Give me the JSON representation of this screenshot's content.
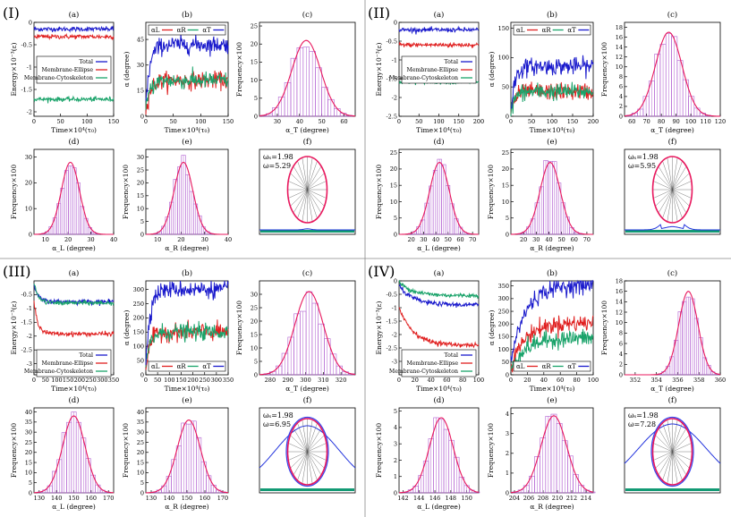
{
  "figure": {
    "groups": [
      {
        "label": "(I)",
        "energy_xmax": "150",
        "omega_s": "ωₛ=1.98",
        "omega": "ω=5.29"
      },
      {
        "label": "(II)",
        "energy_xmax": "200",
        "omega_s": "ωₛ=1.98",
        "omega": "ω=5.95"
      },
      {
        "label": "(III)",
        "energy_xmax": "350",
        "omega_s": "ωₛ=1.98",
        "omega": "ω=6.95"
      },
      {
        "label": "(IV)",
        "energy_xmax": "100",
        "omega_s": "ωₛ=1.98",
        "omega": "ω=7.28"
      }
    ],
    "panel_letters": [
      "(a)",
      "(b)",
      "(c)",
      "(d)",
      "(e)",
      "(f)"
    ],
    "energy_ylabel": "Energy×10⁻³(ε)",
    "time_xlabel": "Time×10⁴(τ₀)",
    "alpha_ylabel": "α (degree)",
    "freq_ylabel": "Frequency×100",
    "alphaT_xlabel": "α_T (degree)",
    "alphaL_xlabel": "α_L (degree)",
    "alphaR_xlabel": "α_R (degree)",
    "energy_legend": [
      "Total",
      "Membrane-Ellipse",
      "Membrane-Cytoskeleton"
    ],
    "alpha_legend": [
      "αL",
      "αR",
      "αT"
    ]
  },
  "colors": {
    "total": "#1a1acc",
    "membrane_ellipse": "#e02020",
    "membrane_cytoskeleton": "#1aa36a",
    "hist_bar": "#b15ed0",
    "gauss": "#e8175d",
    "ellipse": "#e8175d",
    "ellipse_inner": "#3344ee",
    "membrane": "#2233dd",
    "substrate": "#129a74"
  },
  "chart_data": [
    {
      "group": "I",
      "panel": "a",
      "type": "line",
      "xlim": [
        0,
        150
      ],
      "ylim": [
        -2.1,
        0
      ],
      "xticks": [
        0,
        50,
        100,
        150
      ],
      "yticks": [
        -2,
        -1.5,
        -1,
        -0.5,
        0
      ],
      "series": [
        {
          "name": "Total",
          "mean": -0.15
        },
        {
          "name": "Membrane-Ellipse",
          "mean": -0.32
        },
        {
          "name": "Membrane-Cytoskeleton",
          "mean": -1.72
        }
      ]
    },
    {
      "group": "I",
      "panel": "b",
      "type": "line",
      "xlim": [
        0,
        150
      ],
      "ylim": [
        0,
        55
      ],
      "xticks": [
        0,
        50,
        100,
        150
      ],
      "yticks": [
        0,
        15,
        30,
        45
      ],
      "series": [
        {
          "name": "αL",
          "mean": 21
        },
        {
          "name": "αR",
          "mean": 21
        },
        {
          "name": "αT",
          "mean": 42
        }
      ]
    },
    {
      "group": "I",
      "panel": "c",
      "type": "bar",
      "mean": 43,
      "sd": 6.5,
      "peak": 21,
      "xlim": [
        22,
        65
      ],
      "ylim": [
        0,
        26
      ],
      "xticks": [
        30,
        40,
        50,
        60
      ],
      "yticks": [
        0,
        5,
        10,
        15,
        20,
        25
      ]
    },
    {
      "group": "I",
      "panel": "d",
      "type": "bar",
      "mean": 21,
      "sd": 4,
      "peak": 28,
      "xlim": [
        5,
        40
      ],
      "ylim": [
        0,
        33
      ],
      "xticks": [
        10,
        20,
        30,
        40
      ],
      "yticks": [
        0,
        10,
        20,
        30
      ]
    },
    {
      "group": "I",
      "panel": "e",
      "type": "bar",
      "mean": 21,
      "sd": 4,
      "peak": 28,
      "xlim": [
        5,
        40
      ],
      "ylim": [
        0,
        33
      ],
      "xticks": [
        10,
        20,
        30,
        40
      ],
      "yticks": [
        0,
        5,
        10,
        15,
        20,
        25,
        30
      ]
    },
    {
      "group": "II",
      "panel": "a",
      "type": "line",
      "xlim": [
        0,
        200
      ],
      "ylim": [
        -2.5,
        0
      ],
      "xticks": [
        0,
        50,
        100,
        150,
        200
      ],
      "yticks": [
        -2.5,
        -2,
        -1.5,
        -1,
        -0.5,
        0
      ],
      "series": [
        {
          "name": "Total",
          "mean": -0.2
        },
        {
          "name": "Membrane-Ellipse",
          "mean": -0.6
        },
        {
          "name": "Membrane-Cytoskeleton",
          "mean": -1.58
        }
      ]
    },
    {
      "group": "II",
      "panel": "b",
      "type": "line",
      "xlim": [
        0,
        200
      ],
      "ylim": [
        0,
        160
      ],
      "xticks": [
        0,
        50,
        100,
        150,
        200
      ],
      "yticks": [
        0,
        50,
        100,
        150
      ],
      "series": [
        {
          "name": "αL",
          "mean": 42
        },
        {
          "name": "αR",
          "mean": 42
        },
        {
          "name": "αT",
          "mean": 85
        }
      ]
    },
    {
      "group": "II",
      "panel": "c",
      "type": "bar",
      "mean": 85,
      "sd": 9,
      "peak": 17,
      "xlim": [
        55,
        120
      ],
      "ylim": [
        0,
        19
      ],
      "xticks": [
        60,
        70,
        80,
        90,
        100,
        110,
        120
      ],
      "yticks": [
        0,
        2,
        4,
        6,
        8,
        10,
        12,
        14,
        16,
        18
      ]
    },
    {
      "group": "II",
      "panel": "d",
      "type": "bar",
      "mean": 43,
      "sd": 8,
      "peak": 22,
      "xlim": [
        10,
        75
      ],
      "ylim": [
        0,
        26
      ],
      "xticks": [
        20,
        30,
        40,
        50,
        60,
        70
      ],
      "yticks": [
        0,
        5,
        10,
        15,
        20,
        25
      ]
    },
    {
      "group": "II",
      "panel": "e",
      "type": "bar",
      "mean": 41,
      "sd": 8,
      "peak": 22,
      "xlim": [
        10,
        75
      ],
      "ylim": [
        0,
        26
      ],
      "xticks": [
        20,
        30,
        40,
        50,
        60,
        70
      ],
      "yticks": [
        0,
        5,
        10,
        15,
        20,
        25
      ]
    },
    {
      "group": "III",
      "panel": "a",
      "type": "line",
      "xlim": [
        0,
        350
      ],
      "ylim": [
        -3.4,
        0
      ],
      "xticks": [
        0,
        50,
        100,
        150,
        200,
        250,
        300,
        350
      ],
      "yticks": [
        -3,
        -2.5,
        -2,
        -1.5,
        -1,
        -0.5
      ],
      "series": [
        {
          "name": "Total",
          "mean": -0.75
        },
        {
          "name": "Membrane-Ellipse",
          "mean": -1.92
        },
        {
          "name": "Membrane-Cytoskeleton",
          "mean": -0.8
        }
      ]
    },
    {
      "group": "III",
      "panel": "b",
      "type": "line",
      "xlim": [
        0,
        350
      ],
      "ylim": [
        0,
        330
      ],
      "xticks": [
        0,
        50,
        100,
        150,
        200,
        250,
        300,
        350
      ],
      "yticks": [
        0,
        50,
        100,
        150,
        200,
        250,
        300
      ],
      "series": [
        {
          "name": "αL",
          "mean": 150
        },
        {
          "name": "αR",
          "mean": 150
        },
        {
          "name": "αT",
          "mean": 300
        }
      ]
    },
    {
      "group": "III",
      "panel": "c",
      "type": "bar",
      "mean": 302,
      "sd": 8,
      "peak": 31,
      "xlim": [
        274,
        328
      ],
      "ylim": [
        0,
        35
      ],
      "xticks": [
        280,
        290,
        300,
        310,
        320
      ],
      "yticks": [
        0,
        5,
        10,
        15,
        20,
        25,
        30
      ]
    },
    {
      "group": "III",
      "panel": "d",
      "type": "bar",
      "mean": 150,
      "sd": 6.5,
      "peak": 38,
      "xlim": [
        127,
        173
      ],
      "ylim": [
        0,
        42
      ],
      "xticks": [
        130,
        140,
        150,
        160,
        170
      ],
      "yticks": [
        0,
        5,
        10,
        15,
        20,
        25,
        30,
        35,
        40
      ]
    },
    {
      "group": "III",
      "panel": "e",
      "type": "bar",
      "mean": 151,
      "sd": 6.5,
      "peak": 36,
      "xlim": [
        127,
        173
      ],
      "ylim": [
        0,
        42
      ],
      "xticks": [
        130,
        140,
        150,
        160,
        170
      ],
      "yticks": [
        0,
        5,
        10,
        15,
        20,
        25,
        30,
        35,
        40
      ]
    },
    {
      "group": "IV",
      "panel": "a",
      "type": "line",
      "xlim": [
        0,
        100
      ],
      "ylim": [
        -3.5,
        0
      ],
      "xticks": [
        0,
        20,
        40,
        60,
        80,
        100
      ],
      "yticks": [
        -3,
        -2.5,
        -2,
        -1.5,
        -1,
        -0.5,
        0
      ],
      "series": [
        {
          "name": "Total",
          "mean": -0.9
        },
        {
          "name": "Membrane-Ellipse",
          "mean": -2.4
        },
        {
          "name": "Membrane-Cytoskeleton",
          "mean": -0.55
        }
      ]
    },
    {
      "group": "IV",
      "panel": "b",
      "type": "line",
      "xlim": [
        0,
        100
      ],
      "ylim": [
        0,
        370
      ],
      "xticks": [
        0,
        20,
        40,
        60,
        80,
        100
      ],
      "yticks": [
        0,
        50,
        100,
        150,
        200,
        250,
        300,
        350
      ],
      "series": [
        {
          "name": "αL",
          "mean": 205
        },
        {
          "name": "αR",
          "mean": 145
        },
        {
          "name": "αT",
          "mean": 355
        }
      ]
    },
    {
      "group": "IV",
      "panel": "c",
      "type": "bar",
      "mean": 357,
      "sd": 0.9,
      "peak": 16,
      "xlim": [
        351,
        360
      ],
      "ylim": [
        0,
        18
      ],
      "xticks": [
        352,
        354,
        356,
        358,
        360
      ],
      "yticks": [
        0,
        2,
        4,
        6,
        8,
        10,
        12,
        14,
        16,
        18
      ]
    },
    {
      "group": "IV",
      "panel": "d",
      "type": "bar",
      "mean": 146.8,
      "sd": 1.5,
      "peak": 4.6,
      "xlim": [
        141.5,
        151.5
      ],
      "ylim": [
        0,
        5.2
      ],
      "xticks": [
        142,
        144,
        146,
        148,
        150
      ],
      "yticks": [
        0,
        1,
        2,
        3,
        4,
        5
      ]
    },
    {
      "group": "IV",
      "panel": "e",
      "type": "bar",
      "mean": 209.5,
      "sd": 1.8,
      "peak": 3.9,
      "xlim": [
        203.5,
        215
      ],
      "ylim": [
        0,
        4.3
      ],
      "xticks": [
        204,
        206,
        208,
        210,
        212,
        214
      ],
      "yticks": [
        0,
        1,
        2,
        3,
        4
      ]
    }
  ]
}
